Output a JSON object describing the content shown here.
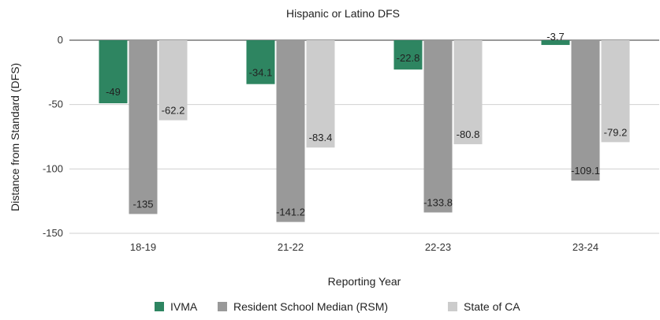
{
  "chart_data": {
    "type": "bar",
    "title": "Hispanic or Latino DFS",
    "xlabel": "Reporting Year",
    "ylabel": "Distance from Standard (DFS)",
    "categories": [
      "18-19",
      "21-22",
      "22-23",
      "23-24"
    ],
    "series": [
      {
        "name": "IVMA",
        "color": "#2e8561",
        "values": [
          -49,
          -34.1,
          -22.8,
          -3.7
        ],
        "labels": [
          "-49",
          "-34.1",
          "-22.8",
          "-3.7"
        ]
      },
      {
        "name": "Resident School Median (RSM)",
        "color": "#999999",
        "values": [
          -135,
          -141.2,
          -133.8,
          -109.1
        ],
        "labels": [
          "-135",
          "-141.2",
          "-133.8",
          "-109.1"
        ]
      },
      {
        "name": "State of CA",
        "color": "#cccccc",
        "values": [
          -62.2,
          -83.4,
          -80.8,
          -79.2
        ],
        "labels": [
          "-62.2",
          "-83.4",
          "-80.8",
          "-79.2"
        ]
      }
    ],
    "ylim": [
      -150,
      0
    ],
    "yticks": [
      0,
      -50,
      -100,
      -150
    ],
    "ytick_labels": [
      "0",
      "-50",
      "-100",
      "-150"
    ],
    "grid": true,
    "legend": "bottom"
  }
}
